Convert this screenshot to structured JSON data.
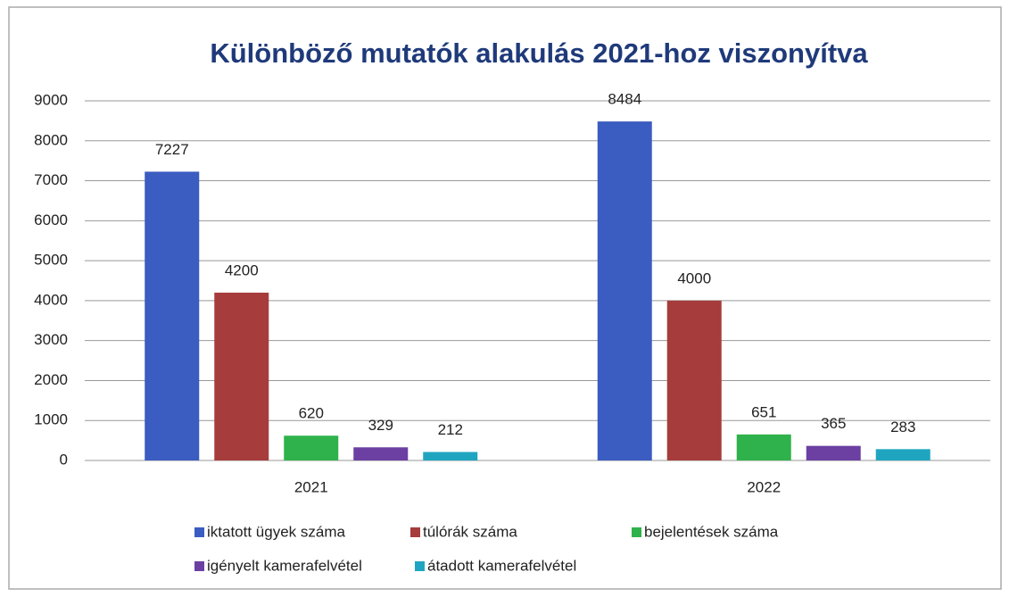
{
  "chart_data": {
    "type": "bar",
    "title": "Különböző mutatók alakulás 2021-hoz viszonyítva",
    "categories": [
      "2021",
      "2022"
    ],
    "series": [
      {
        "name": "iktatott ügyek száma",
        "color": "#3b5cc0",
        "values": [
          7227,
          8484
        ]
      },
      {
        "name": "túlórák száma",
        "color": "#a63c3c",
        "values": [
          4200,
          4000
        ]
      },
      {
        "name": "bejelentések száma",
        "color": "#2fb24b",
        "values": [
          620,
          651
        ]
      },
      {
        "name": "igényelt kamerafelvétel",
        "color": "#6b40a2",
        "values": [
          329,
          365
        ]
      },
      {
        "name": "átadott kamerafelvétel",
        "color": "#1fa5c0",
        "values": [
          212,
          283
        ]
      }
    ],
    "ylim": [
      0,
      9000
    ],
    "yticks": [
      0,
      1000,
      2000,
      3000,
      4000,
      5000,
      6000,
      7000,
      8000,
      9000
    ],
    "grid": true,
    "legend": "bottom"
  }
}
